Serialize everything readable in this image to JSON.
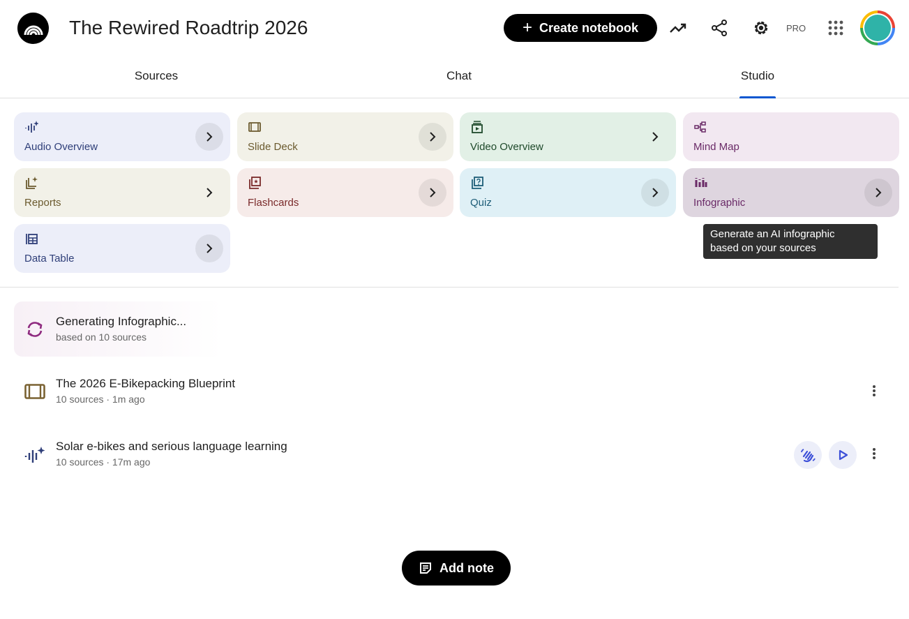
{
  "header": {
    "title": "The Rewired Roadtrip 2026",
    "create_label": "Create notebook",
    "pro_label": "PRO"
  },
  "tabs": [
    {
      "label": "Sources"
    },
    {
      "label": "Chat"
    },
    {
      "label": "Studio",
      "active": true
    }
  ],
  "studio_cards": [
    {
      "label": "Audio Overview",
      "icon": "audio-waveform-sparkle-icon",
      "bg": "#eceef9",
      "fg": "#2f3f79"
    },
    {
      "label": "Slide Deck",
      "icon": "slides-icon",
      "bg": "#f2f1e8",
      "fg": "#6b5a2e"
    },
    {
      "label": "Video Overview",
      "icon": "video-library-icon",
      "bg": "#e2f0e6",
      "fg": "#1f4a2b"
    },
    {
      "label": "Mind Map",
      "icon": "mind-map-icon",
      "bg": "#f2e8f1",
      "fg": "#6a2a67"
    },
    {
      "label": "Reports",
      "icon": "report-sparkle-icon",
      "bg": "#f2f1e8",
      "fg": "#6b5a2e"
    },
    {
      "label": "Flashcards",
      "icon": "flashcards-icon",
      "bg": "#f6ebe9",
      "fg": "#7a2a2a"
    },
    {
      "label": "Quiz",
      "icon": "quiz-icon",
      "bg": "#dff0f6",
      "fg": "#1d5d78"
    },
    {
      "label": "Infographic",
      "icon": "infographic-icon",
      "bg": "#ded5df",
      "fg": "#6a2a67"
    },
    {
      "label": "Data Table",
      "icon": "table-icon",
      "bg": "#eceef9",
      "fg": "#2f3f79"
    }
  ],
  "tooltip": {
    "line1": "Generate an AI infographic",
    "line2": "based on your sources"
  },
  "generating": {
    "title": "Generating Infographic...",
    "subtitle": "based on 10 sources"
  },
  "items": [
    {
      "title": "The 2026 E-Bikepacking Blueprint",
      "subtitle": "10 sources · 1m ago",
      "icon": "slides-icon"
    },
    {
      "title": "Solar e-bikes and serious language learning",
      "subtitle": "10 sources · 17m ago",
      "icon": "audio-waveform-sparkle-icon"
    }
  ],
  "add_note_label": "Add note"
}
